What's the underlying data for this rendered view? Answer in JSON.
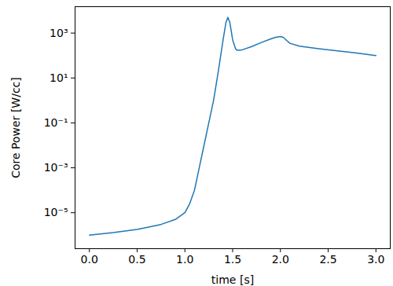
{
  "chart_data": {
    "type": "line",
    "x_label": "time [s]",
    "y_label": "Core Power [W/cc]",
    "log": "y",
    "grid": false,
    "color": "#1f77b4",
    "x": [
      0,
      0.25,
      0.5,
      0.75,
      0.9,
      1.0,
      1.05,
      1.1,
      1.15,
      1.2,
      1.25,
      1.3,
      1.35,
      1.4,
      1.43,
      1.45,
      1.47,
      1.5,
      1.53,
      1.55,
      1.6,
      1.7,
      1.8,
      1.9,
      1.95,
      2.0,
      2.03,
      2.07,
      2.1,
      2.2,
      2.4,
      2.6,
      2.8,
      3.0
    ],
    "values": [
      1e-06,
      1.3e-06,
      1.8e-06,
      3e-06,
      5e-06,
      1e-05,
      2.5e-05,
      0.0001,
      0.001,
      0.01,
      0.1,
      1,
      20,
      500,
      3000,
      5000,
      3000,
      500,
      200,
      170,
      180,
      250,
      380,
      550,
      650,
      700,
      650,
      450,
      350,
      260,
      200,
      160,
      130,
      100
    ],
    "xlim": [
      -0.15,
      3.15
    ],
    "ylim": [
      2.5e-07,
      15000
    ],
    "xticks": [
      {
        "value": 0,
        "label": "0.0"
      },
      {
        "value": 0.5,
        "label": "0.5"
      },
      {
        "value": 1,
        "label": "1.0"
      },
      {
        "value": 1.5,
        "label": "1.5"
      },
      {
        "value": 2,
        "label": "2.0"
      },
      {
        "value": 2.5,
        "label": "2.5"
      },
      {
        "value": 3,
        "label": "3.0"
      }
    ],
    "yticks": [
      {
        "value": 1e-05,
        "label": "10⁻⁵"
      },
      {
        "value": 0.001,
        "label": "10⁻³"
      },
      {
        "value": 0.1,
        "label": "10⁻¹"
      },
      {
        "value": 10,
        "label": "10¹"
      },
      {
        "value": 1000,
        "label": "10³"
      }
    ]
  }
}
